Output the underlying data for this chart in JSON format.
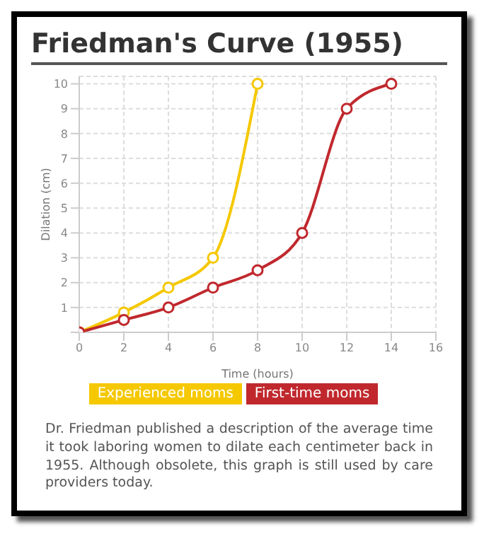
{
  "chart_data": {
    "type": "line",
    "title": "Friedman's Curve (1955)",
    "xlabel": "Time (hours)",
    "ylabel": "Dilation (cm)",
    "series": [
      {
        "name": "Experienced moms",
        "color": "#f5c800",
        "x": [
          0,
          2,
          4,
          6,
          8
        ],
        "values": [
          0,
          0.8,
          1.8,
          3,
          10
        ]
      },
      {
        "name": "First-time moms",
        "color": "#c0282d",
        "x": [
          0,
          2,
          4,
          6,
          8,
          10,
          12,
          14
        ],
        "values": [
          0,
          0.5,
          1,
          1.8,
          2.5,
          4,
          9,
          10
        ]
      }
    ],
    "xlim": [
      0,
      16
    ],
    "xticks": [
      0,
      2,
      4,
      6,
      8,
      10,
      12,
      14,
      16
    ],
    "ylim": [
      0,
      10.3
    ],
    "yticks": [
      {
        "value": 0,
        "label": null
      },
      1,
      2,
      3,
      4,
      5,
      6,
      7,
      8,
      9,
      10
    ],
    "grid": true,
    "legend": "bottom",
    "marker": "circle",
    "line_style": "solid",
    "annotations": [
      "Dr. Friedman published a description of the average time it took laboring women to dilate each centimeter back in 1955. Although obsolete, this graph is still used by care providers today."
    ]
  }
}
